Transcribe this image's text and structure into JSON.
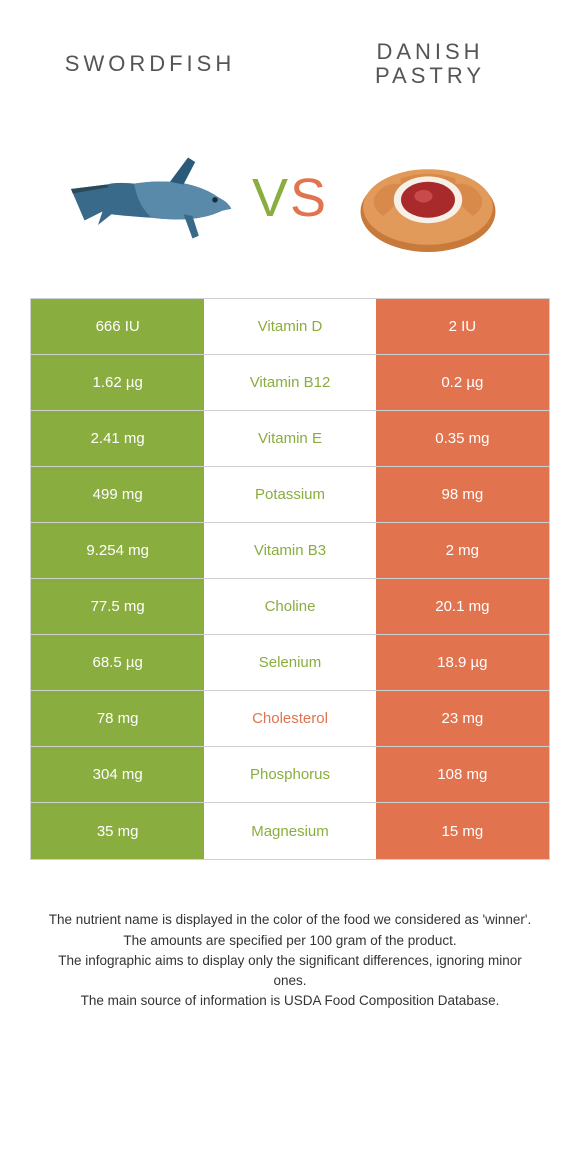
{
  "header": {
    "left_title": "SWORDFISH",
    "right_title": "DANISH PASTRY",
    "vs_v": "V",
    "vs_s": "S"
  },
  "colors": {
    "left_bg": "#8aad3f",
    "right_bg": "#e2734f",
    "left_text": "#8aad3f",
    "right_text": "#e2734f"
  },
  "rows": [
    {
      "left": "666 IU",
      "mid": "Vitamin D",
      "right": "2 IU",
      "winner": "left"
    },
    {
      "left": "1.62 µg",
      "mid": "Vitamin B12",
      "right": "0.2 µg",
      "winner": "left"
    },
    {
      "left": "2.41 mg",
      "mid": "Vitamin E",
      "right": "0.35 mg",
      "winner": "left"
    },
    {
      "left": "499 mg",
      "mid": "Potassium",
      "right": "98 mg",
      "winner": "left"
    },
    {
      "left": "9.254 mg",
      "mid": "Vitamin B3",
      "right": "2 mg",
      "winner": "left"
    },
    {
      "left": "77.5 mg",
      "mid": "Choline",
      "right": "20.1 mg",
      "winner": "left"
    },
    {
      "left": "68.5 µg",
      "mid": "Selenium",
      "right": "18.9 µg",
      "winner": "left"
    },
    {
      "left": "78 mg",
      "mid": "Cholesterol",
      "right": "23 mg",
      "winner": "right"
    },
    {
      "left": "304 mg",
      "mid": "Phosphorus",
      "right": "108 mg",
      "winner": "left"
    },
    {
      "left": "35 mg",
      "mid": "Magnesium",
      "right": "15 mg",
      "winner": "left"
    }
  ],
  "footer": {
    "line1": "The nutrient name is displayed in the color of the food we considered as 'winner'.",
    "line2": "The amounts are specified per 100 gram of the product.",
    "line3": "The infographic aims to display only the significant differences, ignoring minor ones.",
    "line4": "The main source of information is USDA Food Composition Database."
  }
}
